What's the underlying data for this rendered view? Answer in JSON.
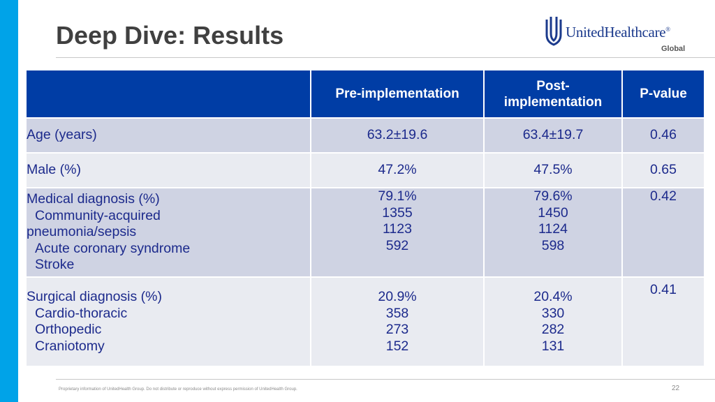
{
  "slide": {
    "title": "Deep Dive: Results",
    "page_number": "22",
    "footer": "Proprietary information of UnitedHealth Group. Do not distribute or reproduce without express permission of UnitedHealth Group.",
    "colors": {
      "accent_bar": "#00a3e8",
      "header_bg": "#003da5",
      "row_dark": "#cfd3e3",
      "row_light": "#e9ebf1",
      "body_text": "#1c2a8c"
    }
  },
  "logo": {
    "name": "UnitedHealthcare",
    "suffix": "®",
    "sub": "Global",
    "icon": "uhc-shield-logo-icon"
  },
  "table": {
    "headers": [
      "",
      "Pre-implementation",
      "Post-implementation",
      "P-value"
    ],
    "rows": [
      {
        "label": [
          "Age (years)"
        ],
        "pre": [
          "63.2±19.6"
        ],
        "post": [
          "63.4±19.7"
        ],
        "p": "0.46"
      },
      {
        "label": [
          "Male (%)"
        ],
        "pre": [
          "47.2%"
        ],
        "post": [
          "47.5%"
        ],
        "p": "0.65"
      },
      {
        "label": [
          "Medical diagnosis (%)",
          "Community-acquired",
          "pneumonia/sepsis",
          "Acute coronary syndrome",
          "Stroke"
        ],
        "pre": [
          "79.1%",
          "1355",
          "1123",
          "592"
        ],
        "post": [
          "79.6%",
          "1450",
          "1124",
          "598"
        ],
        "p": "0.42"
      },
      {
        "label": [
          "Surgical diagnosis (%)",
          "Cardio-thoracic",
          "Orthopedic",
          "Craniotomy"
        ],
        "pre": [
          "20.9%",
          "358",
          "273",
          "152"
        ],
        "post": [
          "20.4%",
          "330",
          "282",
          "131"
        ],
        "p": "0.41"
      }
    ]
  }
}
